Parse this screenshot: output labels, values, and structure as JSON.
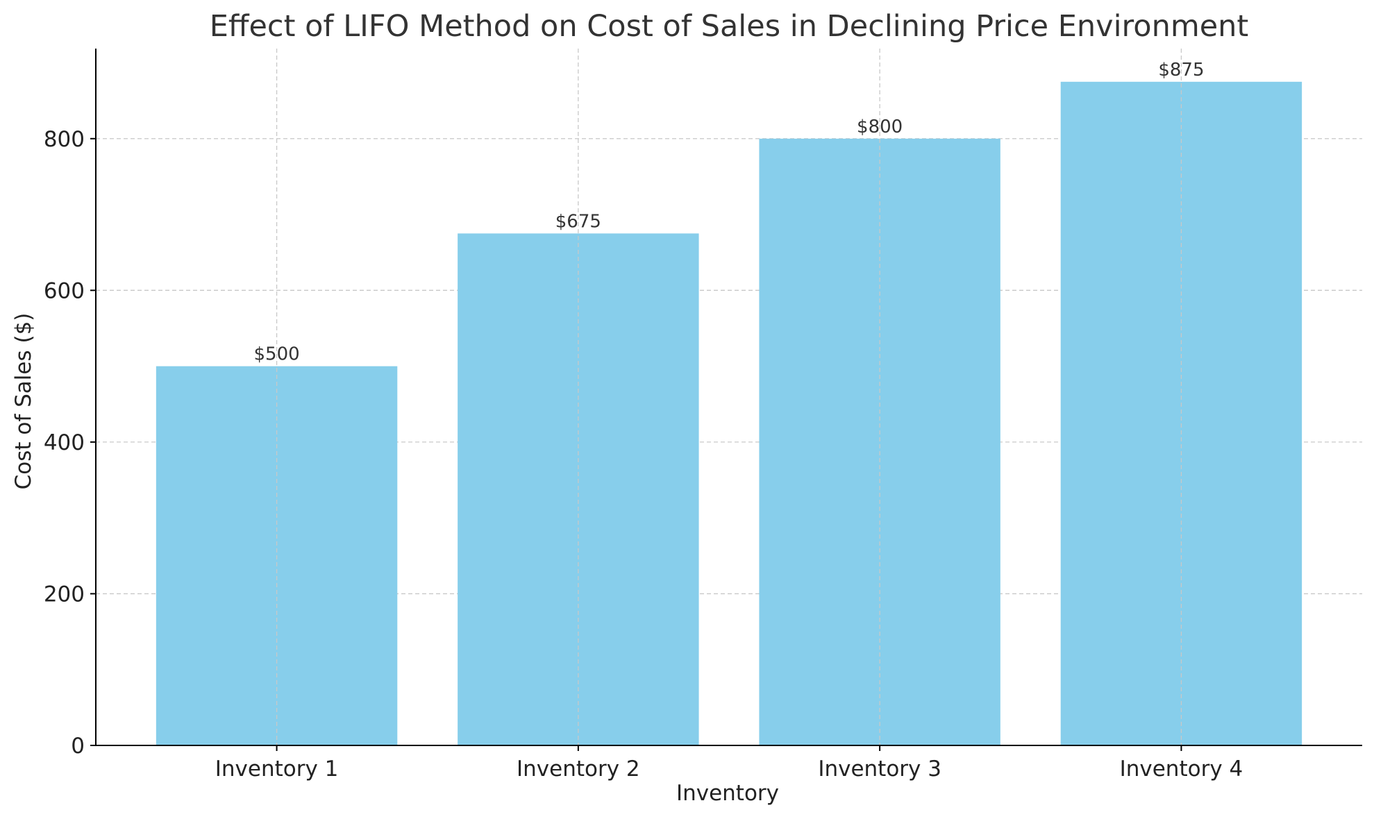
{
  "chart_data": {
    "type": "bar",
    "title": "Effect of LIFO Method on Cost of Sales in Declining Price Environment",
    "xlabel": "Inventory",
    "ylabel": "Cost of Sales ($)",
    "categories": [
      "Inventory 1",
      "Inventory 2",
      "Inventory 3",
      "Inventory 4"
    ],
    "values": [
      500,
      675,
      800,
      875
    ],
    "data_labels": [
      "$500",
      "$675",
      "$800",
      "$875"
    ],
    "ylim": [
      0,
      918.75
    ],
    "yticks": [
      0,
      200,
      400,
      600,
      800
    ],
    "bar_color": "#87CEEB",
    "grid": true,
    "legend": "none"
  }
}
